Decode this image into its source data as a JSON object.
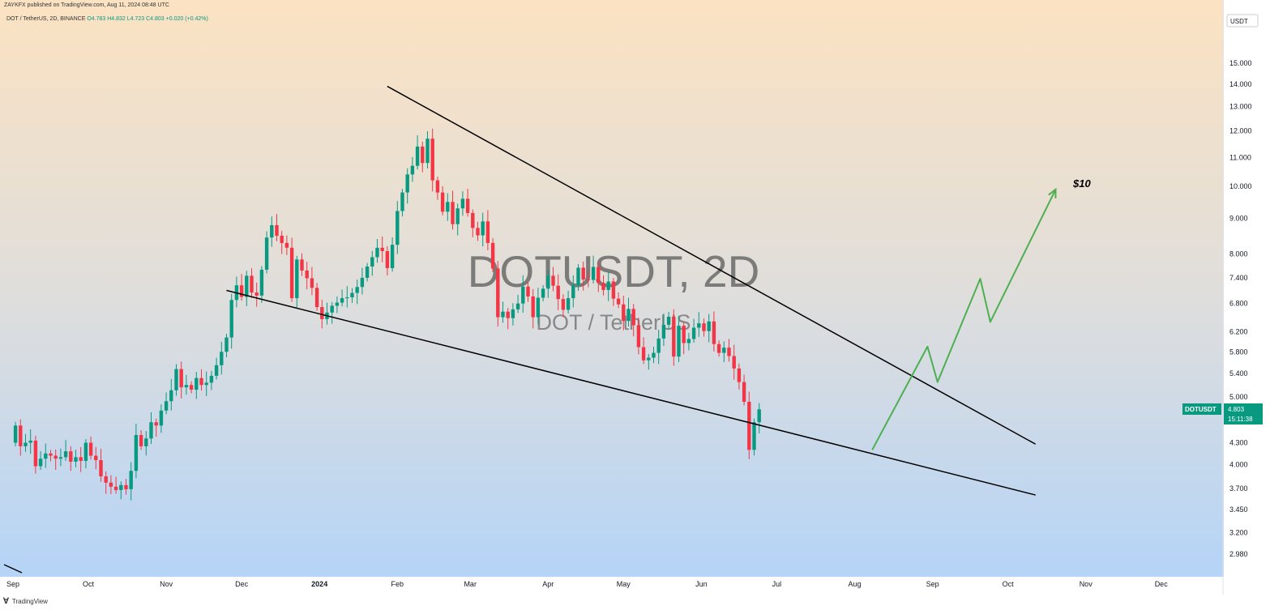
{
  "header": {
    "published_line": "ZAYKFX published on TradingView.com, Aug 11, 2024 08:48 UTC",
    "symbol_line": "DOT / TetherUS, 2D, BINANCE",
    "ohlc": "O4.783 H4.832 L4.723 C4.803 +0.020 (+0.42%)"
  },
  "currency_button": "USDT",
  "watermark": {
    "symbol": "DOTUSDT, 2D",
    "name": "DOT / TetherUS"
  },
  "price_tag": {
    "symbol": "DOTUSDT",
    "price": "4.803",
    "countdown": "15:11:38"
  },
  "target_label": "$10",
  "footer": {
    "brand": "TradingView"
  },
  "colors": {
    "up": "#089981",
    "down": "#f23645",
    "projection": "#4caf50",
    "trendline": "#000000"
  },
  "chart_data": {
    "type": "candlestick",
    "scale": "log",
    "y_ticks": [
      15,
      14,
      13,
      12,
      11,
      10,
      9,
      8,
      7.4,
      6.8,
      6.2,
      5.8,
      5.4,
      5,
      4.3,
      4,
      3.7,
      3.45,
      3.2,
      2.98
    ],
    "y_tick_labels": [
      "15.000",
      "14.000",
      "13.000",
      "12.000",
      "11.000",
      "10.000",
      "9.000",
      "8.000",
      "7.400",
      "6.800",
      "6.200",
      "5.800",
      "5.400",
      "5.000",
      "4.300",
      "4.000",
      "3.700",
      "3.450",
      "3.200",
      "2.980"
    ],
    "x_labels": [
      "Sep",
      "Oct",
      "Nov",
      "Dec",
      "2024",
      "Feb",
      "Mar",
      "Apr",
      "May",
      "Jun",
      "Jul",
      "Aug",
      "Sep",
      "Oct",
      "Nov",
      "Dec"
    ],
    "x_label_dates": [
      "2023-09-01",
      "2023-10-01",
      "2023-11-01",
      "2023-12-01",
      "2024-01-01",
      "2024-02-01",
      "2024-03-01",
      "2024-04-01",
      "2024-05-01",
      "2024-06-01",
      "2024-07-01",
      "2024-08-01",
      "2024-09-01",
      "2024-10-01",
      "2024-11-01",
      "2024-12-01"
    ],
    "closes": [
      4.55,
      4.25,
      4.3,
      4.33,
      3.98,
      4.08,
      4.15,
      4.12,
      4.08,
      4.1,
      4.18,
      4.04,
      4.1,
      4.05,
      4.3,
      4.12,
      4.06,
      3.85,
      3.77,
      3.72,
      3.68,
      3.74,
      3.69,
      3.92,
      4.41,
      4.25,
      4.36,
      4.6,
      4.55,
      4.78,
      4.93,
      5.11,
      5.48,
      5.16,
      5.2,
      5.12,
      5.32,
      5.2,
      5.24,
      5.36,
      5.55,
      5.8,
      6.08,
      6.88,
      7.22,
      6.95,
      7.45,
      7.05,
      6.98,
      7.6,
      8.45,
      8.8,
      8.5,
      8.3,
      8.17,
      6.92,
      7.86,
      7.58,
      7.39,
      7.16,
      6.72,
      6.46,
      6.6,
      6.75,
      6.82,
      6.92,
      6.94,
      7.04,
      7.18,
      7.4,
      7.68,
      7.92,
      8.17,
      8.08,
      7.64,
      8.25,
      9.22,
      9.8,
      10.4,
      10.7,
      11.4,
      10.8,
      11.7,
      10.2,
      9.8,
      9.2,
      9.5,
      8.83,
      9.3,
      9.6,
      9.16,
      8.72,
      8.51,
      8.91,
      8.3,
      7.63,
      6.5,
      6.62,
      6.48,
      6.67,
      6.8,
      7.19,
      6.96,
      6.5,
      6.93,
      7.14,
      7.45,
      7.21,
      6.9,
      6.66,
      6.92,
      7.22,
      7.65,
      7.36,
      7.35,
      7.67,
      7.28,
      7.11,
      7.31,
      6.91,
      6.78,
      6.42,
      6.68,
      6.33,
      5.89,
      5.64,
      5.69,
      5.78,
      6.06,
      6.34,
      6.51,
      5.71,
      6.32,
      5.97,
      6.05,
      6.28,
      6.37,
      6.21,
      6.41,
      5.95,
      5.78,
      5.88,
      5.72,
      5.49,
      5.25,
      4.92,
      4.2,
      4.6,
      4.8
    ],
    "trendlines": [
      {
        "name": "upper",
        "from": [
          "2024-01-28",
          13.9
        ],
        "to": [
          "2024-10-12",
          4.28
        ]
      },
      {
        "name": "lower",
        "from": [
          "2023-11-25",
          7.1
        ],
        "to": [
          "2024-10-12",
          3.62
        ]
      }
    ],
    "projection_path": [
      [
        "2024-08-08",
        4.2
      ],
      [
        "2024-08-30",
        5.9
      ],
      [
        "2024-09-03",
        5.25
      ],
      [
        "2024-09-20",
        7.38
      ],
      [
        "2024-09-24",
        6.4
      ],
      [
        "2024-10-20",
        9.9
      ]
    ]
  }
}
